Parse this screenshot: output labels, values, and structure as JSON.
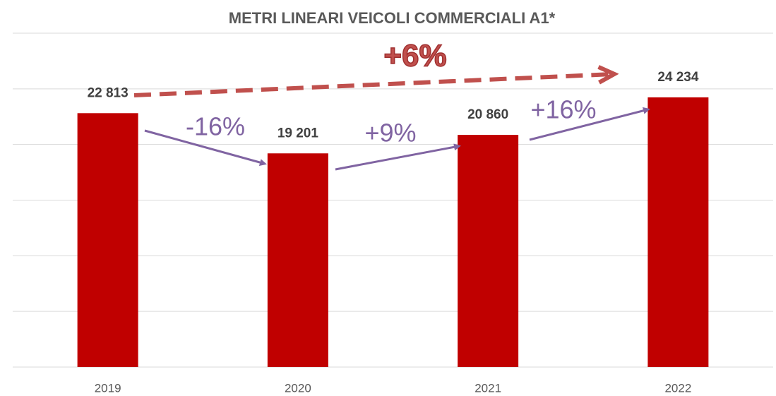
{
  "chart_data": {
    "type": "bar",
    "title": "METRI LINEARI VEICOLI COMMERCIALI A1*",
    "categories": [
      "2019",
      "2020",
      "2021",
      "2022"
    ],
    "values": [
      22813,
      19201,
      20860,
      24234
    ],
    "value_labels": [
      "22 813",
      "19 201",
      "20 860",
      "24 234"
    ],
    "color": "#c00000",
    "ylim": [
      0,
      30000
    ],
    "yticks": [
      0,
      5000,
      10000,
      15000,
      20000,
      25000,
      30000
    ],
    "grid": true,
    "annotations": [
      "+6%",
      "-16%",
      "+9%",
      "+16%"
    ]
  }
}
